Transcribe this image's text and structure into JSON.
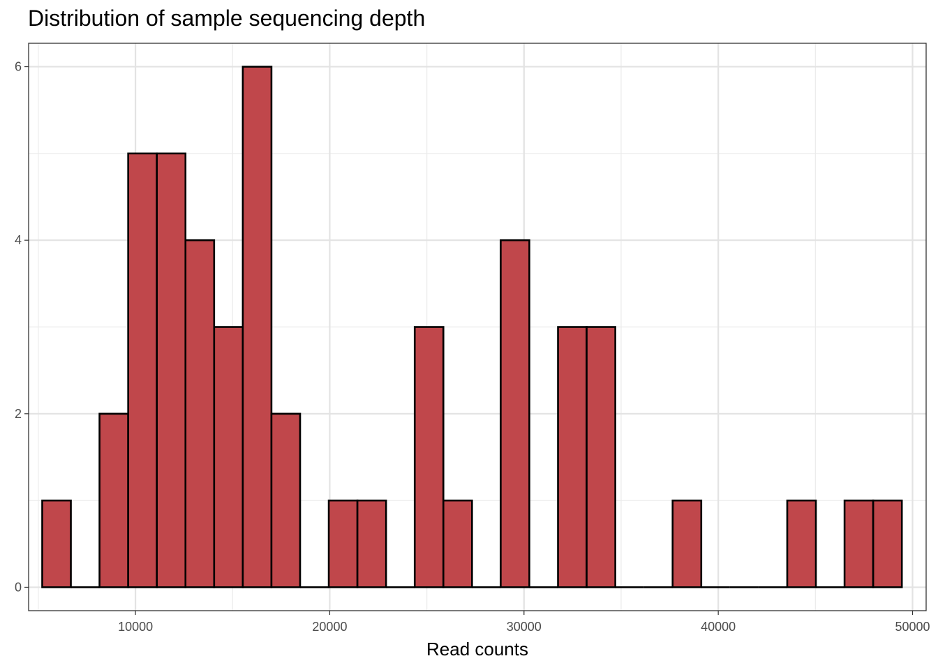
{
  "chart_data": {
    "type": "bar",
    "subtype": "histogram",
    "title": "Distribution of sample sequencing depth",
    "xlabel": "Read counts",
    "ylabel": "",
    "xlim": [
      4500,
      50700
    ],
    "ylim": [
      -0.27,
      6.27
    ],
    "x_ticks": [
      10000,
      20000,
      30000,
      40000,
      50000
    ],
    "x_tick_labels": [
      "10000",
      "20000",
      "30000",
      "40000",
      "50000"
    ],
    "y_ticks": [
      0,
      2,
      4,
      6
    ],
    "y_tick_labels": [
      "0",
      "2",
      "4",
      "6"
    ],
    "x_minor_ticks": [
      5000,
      15000,
      25000,
      35000,
      45000
    ],
    "y_minor_ticks": [
      1,
      3,
      5
    ],
    "grid": true,
    "bin_start": 5200,
    "bin_width": 1475,
    "values": [
      1,
      0,
      2,
      5,
      5,
      4,
      3,
      6,
      2,
      0,
      1,
      1,
      0,
      3,
      1,
      0,
      4,
      0,
      3,
      3,
      0,
      0,
      1,
      0,
      0,
      0,
      1,
      0,
      1,
      1
    ],
    "fill_color": "#c0474b",
    "edge_color": "#000000"
  }
}
